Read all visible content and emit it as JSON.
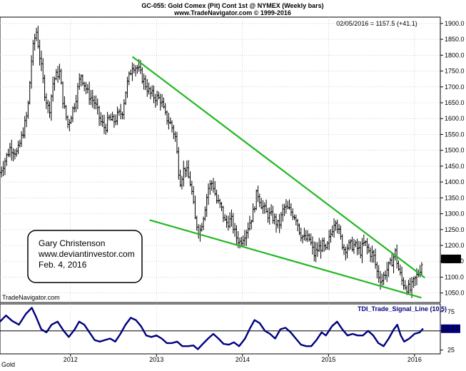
{
  "header": {
    "title_line1": "GC-055:  Gold Comex (Pit) Cont 1st @ NYMEX  (Weekly bars)",
    "title_line2": "www.TradeNavigator.com © 1999-2016",
    "last_value_label": "02/05/2016 = 1157.5 (+41.1)",
    "watermark": "TradeNavigator.com",
    "symbol_label": "Gold"
  },
  "annotation": {
    "line1": "Gary Christenson",
    "line2": "www.deviantinvestor.com",
    "line3": "Feb. 4, 2016"
  },
  "colors": {
    "bars": "#000000",
    "trendline": "#22b822",
    "indicator": "#000080",
    "grid": "#b8b8b8",
    "price_tag_bg": "#000000",
    "price_tag_fg": "#ffffff",
    "panel_bg": "#ffffff"
  },
  "chart_data": [
    {
      "type": "ohlc",
      "title": "GC-055:  Gold Comex (Pit) Cont 1st @ NYMEX  (Weekly bars)",
      "ylim": [
        1020,
        1920
      ],
      "y_ticks": [
        1050,
        1100,
        1150,
        1200,
        1250,
        1300,
        1350,
        1400,
        1450,
        1500,
        1550,
        1600,
        1650,
        1700,
        1750,
        1800,
        1850,
        1900
      ],
      "x_ticks": [
        {
          "label": "2012",
          "year": 2012.0
        },
        {
          "label": "2013",
          "year": 2013.0
        },
        {
          "label": "2014",
          "year": 2014.0
        },
        {
          "label": "2015",
          "year": 2015.0
        },
        {
          "label": "2016",
          "year": 2016.0
        }
      ],
      "x_range_years": [
        2011.18,
        2016.3
      ],
      "grid": true,
      "last_price": "1157.5",
      "price_path": [
        [
          2011.18,
          1430
        ],
        [
          2011.3,
          1510
        ],
        [
          2011.38,
          1490
        ],
        [
          2011.45,
          1560
        ],
        [
          2011.5,
          1620
        ],
        [
          2011.55,
          1800
        ],
        [
          2011.6,
          1880
        ],
        [
          2011.65,
          1780
        ],
        [
          2011.7,
          1680
        ],
        [
          2011.75,
          1620
        ],
        [
          2011.8,
          1720
        ],
        [
          2011.87,
          1750
        ],
        [
          2011.92,
          1640
        ],
        [
          2011.97,
          1580
        ],
        [
          2012.05,
          1650
        ],
        [
          2012.12,
          1740
        ],
        [
          2012.2,
          1680
        ],
        [
          2012.28,
          1650
        ],
        [
          2012.35,
          1590
        ],
        [
          2012.4,
          1570
        ],
        [
          2012.45,
          1600
        ],
        [
          2012.5,
          1590
        ],
        [
          2012.55,
          1610
        ],
        [
          2012.6,
          1620
        ],
        [
          2012.65,
          1700
        ],
        [
          2012.72,
          1770
        ],
        [
          2012.78,
          1760
        ],
        [
          2012.85,
          1720
        ],
        [
          2012.92,
          1680
        ],
        [
          2012.97,
          1670
        ],
        [
          2013.05,
          1660
        ],
        [
          2013.1,
          1610
        ],
        [
          2013.17,
          1580
        ],
        [
          2013.22,
          1540
        ],
        [
          2013.27,
          1400
        ],
        [
          2013.33,
          1450
        ],
        [
          2013.4,
          1390
        ],
        [
          2013.45,
          1280
        ],
        [
          2013.5,
          1240
        ],
        [
          2013.55,
          1300
        ],
        [
          2013.6,
          1380
        ],
        [
          2013.65,
          1400
        ],
        [
          2013.7,
          1340
        ],
        [
          2013.75,
          1320
        ],
        [
          2013.8,
          1270
        ],
        [
          2013.87,
          1280
        ],
        [
          2013.92,
          1230
        ],
        [
          2013.97,
          1210
        ],
        [
          2014.05,
          1250
        ],
        [
          2014.12,
          1300
        ],
        [
          2014.17,
          1370
        ],
        [
          2014.22,
          1330
        ],
        [
          2014.28,
          1300
        ],
        [
          2014.35,
          1290
        ],
        [
          2014.42,
          1260
        ],
        [
          2014.48,
          1320
        ],
        [
          2014.55,
          1310
        ],
        [
          2014.62,
          1290
        ],
        [
          2014.67,
          1240
        ],
        [
          2014.72,
          1220
        ],
        [
          2014.78,
          1220
        ],
        [
          2014.83,
          1170
        ],
        [
          2014.88,
          1190
        ],
        [
          2014.93,
          1200
        ],
        [
          2014.97,
          1180
        ],
        [
          2015.05,
          1260
        ],
        [
          2015.08,
          1290
        ],
        [
          2015.13,
          1230
        ],
        [
          2015.18,
          1190
        ],
        [
          2015.25,
          1200
        ],
        [
          2015.3,
          1200
        ],
        [
          2015.37,
          1180
        ],
        [
          2015.42,
          1210
        ],
        [
          2015.47,
          1180
        ],
        [
          2015.52,
          1170
        ],
        [
          2015.57,
          1110
        ],
        [
          2015.62,
          1090
        ],
        [
          2015.67,
          1120
        ],
        [
          2015.72,
          1140
        ],
        [
          2015.78,
          1180
        ],
        [
          2015.8,
          1140
        ],
        [
          2015.85,
          1090
        ],
        [
          2015.9,
          1070
        ],
        [
          2015.95,
          1060
        ],
        [
          2016.0,
          1090
        ],
        [
          2016.05,
          1115
        ],
        [
          2016.1,
          1157
        ]
      ],
      "trendlines": [
        {
          "points": [
            [
              2012.72,
              1795
            ],
            [
              2016.12,
              1098
            ]
          ]
        },
        {
          "points": [
            [
              2012.92,
              1280
            ],
            [
              2016.08,
              1035
            ]
          ]
        }
      ]
    },
    {
      "type": "line",
      "title": "TDI_Trade_Signal_Line (10,5)",
      "ylim": [
        20,
        85
      ],
      "y_ticks": [
        25,
        50,
        75
      ],
      "last_value": "52.74",
      "baseline": 50,
      "x_range_years": [
        2011.18,
        2016.3
      ],
      "points": [
        [
          2011.18,
          62
        ],
        [
          2011.25,
          70
        ],
        [
          2011.32,
          63
        ],
        [
          2011.4,
          58
        ],
        [
          2011.48,
          72
        ],
        [
          2011.55,
          80
        ],
        [
          2011.6,
          68
        ],
        [
          2011.66,
          52
        ],
        [
          2011.72,
          48
        ],
        [
          2011.78,
          58
        ],
        [
          2011.85,
          62
        ],
        [
          2011.92,
          50
        ],
        [
          2011.98,
          42
        ],
        [
          2012.05,
          52
        ],
        [
          2012.1,
          62
        ],
        [
          2012.16,
          58
        ],
        [
          2012.22,
          48
        ],
        [
          2012.28,
          38
        ],
        [
          2012.34,
          36
        ],
        [
          2012.4,
          38
        ],
        [
          2012.46,
          40
        ],
        [
          2012.52,
          36
        ],
        [
          2012.58,
          46
        ],
        [
          2012.64,
          58
        ],
        [
          2012.7,
          67
        ],
        [
          2012.76,
          64
        ],
        [
          2012.82,
          56
        ],
        [
          2012.88,
          44
        ],
        [
          2012.94,
          42
        ],
        [
          2013.0,
          44
        ],
        [
          2013.06,
          40
        ],
        [
          2013.12,
          34
        ],
        [
          2013.18,
          34
        ],
        [
          2013.24,
          36
        ],
        [
          2013.3,
          30
        ],
        [
          2013.37,
          30
        ],
        [
          2013.43,
          31
        ],
        [
          2013.48,
          26
        ],
        [
          2013.53,
          32
        ],
        [
          2013.6,
          40
        ],
        [
          2013.66,
          46
        ],
        [
          2013.72,
          40
        ],
        [
          2013.78,
          33
        ],
        [
          2013.84,
          32
        ],
        [
          2013.9,
          35
        ],
        [
          2013.96,
          30
        ],
        [
          2014.03,
          40
        ],
        [
          2014.09,
          54
        ],
        [
          2014.14,
          64
        ],
        [
          2014.2,
          60
        ],
        [
          2014.26,
          50
        ],
        [
          2014.32,
          46
        ],
        [
          2014.38,
          40
        ],
        [
          2014.44,
          52
        ],
        [
          2014.5,
          54
        ],
        [
          2014.56,
          48
        ],
        [
          2014.62,
          40
        ],
        [
          2014.68,
          32
        ],
        [
          2014.74,
          30
        ],
        [
          2014.8,
          30
        ],
        [
          2014.86,
          38
        ],
        [
          2014.92,
          48
        ],
        [
          2014.97,
          44
        ],
        [
          2015.04,
          56
        ],
        [
          2015.1,
          62
        ],
        [
          2015.16,
          52
        ],
        [
          2015.22,
          44
        ],
        [
          2015.28,
          46
        ],
        [
          2015.34,
          44
        ],
        [
          2015.4,
          44
        ],
        [
          2015.46,
          50
        ],
        [
          2015.52,
          44
        ],
        [
          2015.58,
          34
        ],
        [
          2015.64,
          30
        ],
        [
          2015.7,
          40
        ],
        [
          2015.76,
          52
        ],
        [
          2015.8,
          58
        ],
        [
          2015.84,
          44
        ],
        [
          2015.88,
          36
        ],
        [
          2015.94,
          40
        ],
        [
          2016.0,
          46
        ],
        [
          2016.06,
          48
        ],
        [
          2016.1,
          53
        ]
      ]
    }
  ]
}
